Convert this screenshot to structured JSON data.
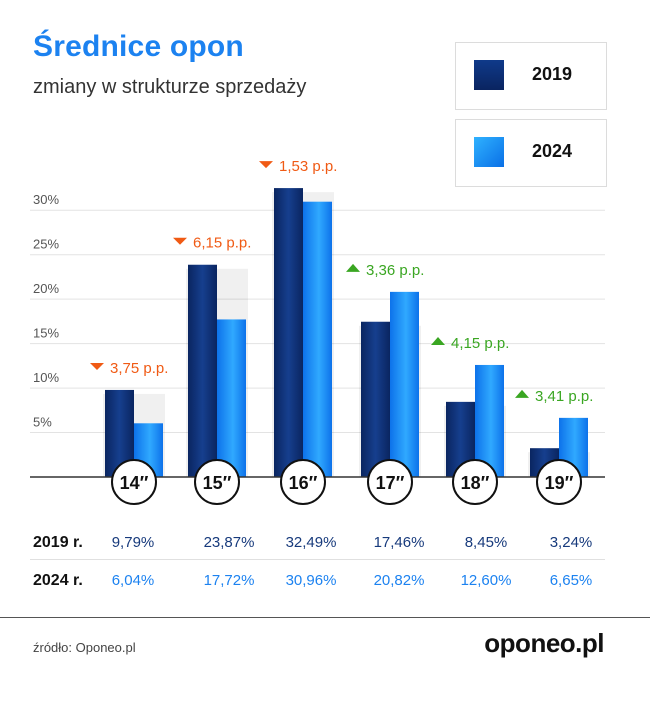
{
  "header": {
    "title": "Średnice opon",
    "subtitle": "zmiany w strukturze sprzedaży"
  },
  "legend": [
    {
      "label": "2019",
      "color": "#0b2a6b"
    },
    {
      "label": "2024",
      "color": "#1c8cf5"
    }
  ],
  "chart_data": {
    "type": "bar",
    "categories": [
      "14″",
      "15″",
      "16″",
      "17″",
      "18″",
      "19″"
    ],
    "series": [
      {
        "name": "2019",
        "values": [
          9.79,
          23.87,
          32.49,
          17.46,
          8.45,
          3.24
        ]
      },
      {
        "name": "2024",
        "values": [
          6.04,
          17.72,
          30.96,
          20.82,
          12.6,
          6.65
        ]
      }
    ],
    "yticks": [
      "5%",
      "10%",
      "15%",
      "20%",
      "25%",
      "30%"
    ],
    "ytick_values": [
      5,
      10,
      15,
      20,
      25,
      30
    ],
    "ylim": [
      0,
      32.5
    ],
    "changes": [
      {
        "text": "3,75 p.p.",
        "direction": "down"
      },
      {
        "text": "6,15 p.p.",
        "direction": "down"
      },
      {
        "text": "1,53 p.p.",
        "direction": "down"
      },
      {
        "text": "3,36 p.p.",
        "direction": "up"
      },
      {
        "text": "4,15 p.p.",
        "direction": "up"
      },
      {
        "text": "3,41 p.p.",
        "direction": "up"
      }
    ],
    "colors": {
      "down": "#f05a14",
      "up": "#3aa622"
    }
  },
  "table": {
    "rows": [
      {
        "label": "2019 r.",
        "values": [
          "9,79%",
          "23,87%",
          "32,49%",
          "17,46%",
          "8,45%",
          "3,24%"
        ]
      },
      {
        "label": "2024 r.",
        "values": [
          "6,04%",
          "17,72%",
          "30,96%",
          "20,82%",
          "12,60%",
          "6,65%"
        ]
      }
    ]
  },
  "footer": {
    "source": "źródło: Oponeo.pl",
    "logo": "oponeo.pl"
  }
}
